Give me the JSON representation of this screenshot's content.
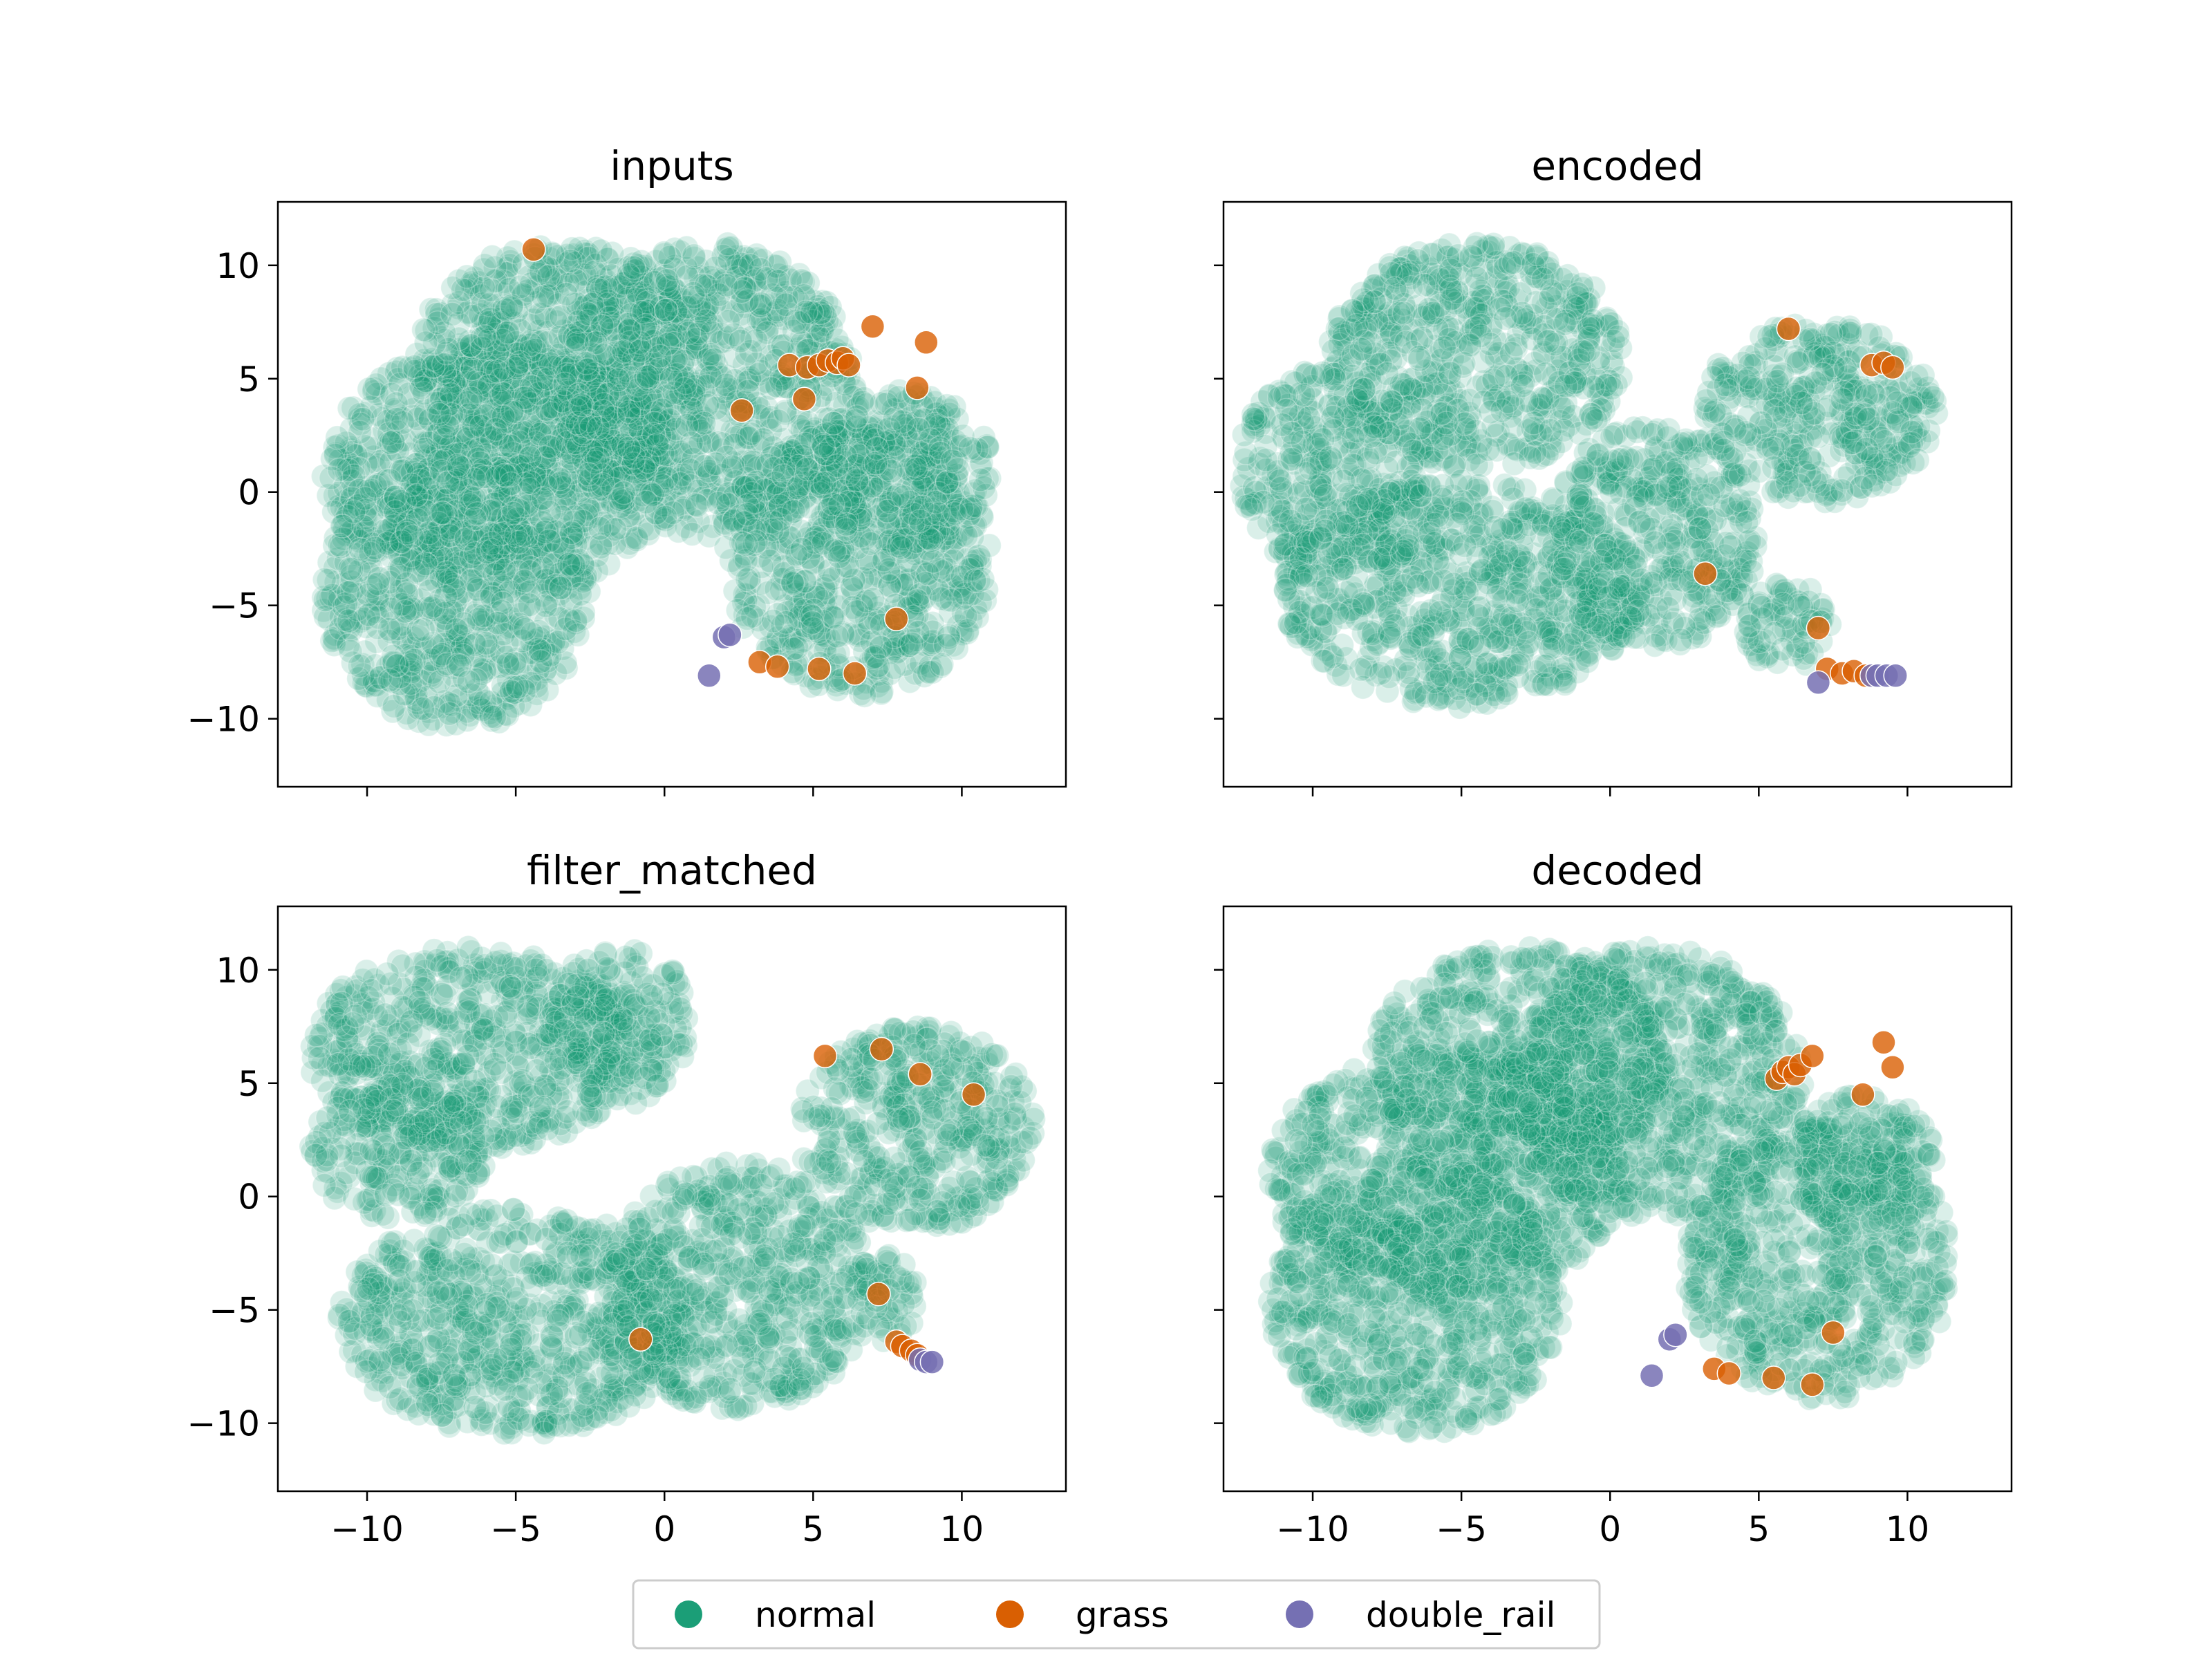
{
  "colors": {
    "normal": "#1b9e77",
    "grass": "#d95f02",
    "double_rail": "#7570b3",
    "axes": "#000000",
    "legend_border": "#cccccc"
  },
  "chart_data": {
    "type": "scatter",
    "layout": "2x2 grid, shared x and y axes",
    "legend": {
      "placement": "bottom-center",
      "entries": [
        "normal",
        "grass",
        "double_rail"
      ]
    },
    "xlim": [
      -13,
      13.5
    ],
    "ylim": [
      -13,
      12.8
    ],
    "xticks": [
      -10,
      -5,
      0,
      5,
      10
    ],
    "yticks": [
      10,
      5,
      0,
      -5,
      -10
    ],
    "xtick_labels": [
      "−10",
      "−5",
      "0",
      "5",
      "10"
    ],
    "ytick_labels": [
      "10",
      "5",
      "0",
      "−5",
      "−10"
    ],
    "grid": false,
    "panels": [
      {
        "title": "inputs",
        "normal_lobes": [
          {
            "cx": -5.5,
            "cy": 1.0,
            "rx": 6.0,
            "ry": 5.5
          },
          {
            "cx": -3.5,
            "cy": 5.5,
            "rx": 5.0,
            "ry": 5.5
          },
          {
            "cx": -7.0,
            "cy": -4.5,
            "rx": 4.5,
            "ry": 6.0
          },
          {
            "cx": 1.5,
            "cy": 4.5,
            "rx": 5.0,
            "ry": 6.5
          },
          {
            "cx": 6.5,
            "cy": -3.0,
            "rx": 4.5,
            "ry": 6.0
          },
          {
            "cx": 8.0,
            "cy": 1.0,
            "rx": 3.0,
            "ry": 3.5
          }
        ],
        "grass": [
          [
            -4.4,
            10.7
          ],
          [
            4.2,
            5.6
          ],
          [
            4.8,
            5.5
          ],
          [
            5.2,
            5.6
          ],
          [
            5.5,
            5.8
          ],
          [
            5.8,
            5.7
          ],
          [
            6.0,
            5.9
          ],
          [
            6.2,
            5.6
          ],
          [
            7.0,
            7.3
          ],
          [
            8.8,
            6.6
          ],
          [
            2.6,
            3.6
          ],
          [
            4.7,
            4.1
          ],
          [
            8.5,
            4.6
          ],
          [
            3.2,
            -7.5
          ],
          [
            3.8,
            -7.7
          ],
          [
            5.2,
            -7.8
          ],
          [
            6.4,
            -8.0
          ],
          [
            7.8,
            -5.6
          ]
        ],
        "double_rail": [
          [
            1.5,
            -8.1
          ],
          [
            2.0,
            -6.4
          ],
          [
            2.2,
            -6.3
          ]
        ]
      },
      {
        "title": "encoded",
        "normal_lobes": [
          {
            "cx": -4.5,
            "cy": 6.0,
            "rx": 5.0,
            "ry": 5.0
          },
          {
            "cx": -9.5,
            "cy": 1.0,
            "rx": 3.0,
            "ry": 4.5
          },
          {
            "cx": -5.0,
            "cy": -4.5,
            "rx": 6.0,
            "ry": 5.0
          },
          {
            "cx": 1.5,
            "cy": -2.0,
            "rx": 3.5,
            "ry": 5.0
          },
          {
            "cx": 7.0,
            "cy": 3.5,
            "rx": 4.0,
            "ry": 4.0
          },
          {
            "cx": 6.0,
            "cy": -6.0,
            "rx": 1.5,
            "ry": 2.0
          }
        ],
        "grass": [
          [
            6.0,
            7.2
          ],
          [
            8.8,
            5.6
          ],
          [
            9.2,
            5.7
          ],
          [
            9.5,
            5.5
          ],
          [
            7.0,
            -6.0
          ],
          [
            7.3,
            -7.8
          ],
          [
            7.8,
            -8.0
          ],
          [
            8.2,
            -7.9
          ],
          [
            8.6,
            -8.1
          ],
          [
            3.2,
            -3.6
          ]
        ],
        "double_rail": [
          [
            7.0,
            -8.4
          ],
          [
            8.8,
            -8.1
          ],
          [
            9.0,
            -8.1
          ],
          [
            9.3,
            -8.1
          ],
          [
            9.6,
            -8.1
          ]
        ]
      },
      {
        "title": "filter_matched",
        "normal_lobes": [
          {
            "cx": -6.5,
            "cy": 6.5,
            "rx": 5.5,
            "ry": 4.5
          },
          {
            "cx": -1.5,
            "cy": 7.5,
            "rx": 2.5,
            "ry": 3.5
          },
          {
            "cx": -9.0,
            "cy": 2.0,
            "rx": 3.0,
            "ry": 3.0
          },
          {
            "cx": -5.0,
            "cy": -5.5,
            "rx": 6.0,
            "ry": 5.0
          },
          {
            "cx": 2.5,
            "cy": -4.0,
            "rx": 4.5,
            "ry": 5.5
          },
          {
            "cx": 8.5,
            "cy": 3.0,
            "rx": 4.0,
            "ry": 4.5
          },
          {
            "cx": 7.5,
            "cy": -4.5,
            "rx": 1.0,
            "ry": 2.0
          }
        ],
        "grass": [
          [
            -0.8,
            -6.3
          ],
          [
            5.4,
            6.2
          ],
          [
            7.3,
            6.5
          ],
          [
            8.6,
            5.4
          ],
          [
            10.4,
            4.5
          ],
          [
            7.2,
            -4.3
          ],
          [
            7.8,
            -6.4
          ],
          [
            8.0,
            -6.6
          ],
          [
            8.3,
            -6.8
          ],
          [
            8.5,
            -7.0
          ]
        ],
        "double_rail": [
          [
            8.6,
            -7.2
          ],
          [
            8.8,
            -7.3
          ],
          [
            9.0,
            -7.3
          ]
        ]
      },
      {
        "title": "decoded",
        "normal_lobes": [
          {
            "cx": -5.5,
            "cy": 1.0,
            "rx": 6.0,
            "ry": 5.5
          },
          {
            "cx": -3.0,
            "cy": 6.0,
            "rx": 5.0,
            "ry": 5.0
          },
          {
            "cx": -6.5,
            "cy": -4.5,
            "rx": 5.0,
            "ry": 6.0
          },
          {
            "cx": 1.5,
            "cy": 5.0,
            "rx": 5.0,
            "ry": 6.0
          },
          {
            "cx": 7.0,
            "cy": -3.0,
            "rx": 4.5,
            "ry": 6.0
          },
          {
            "cx": 8.5,
            "cy": 1.5,
            "rx": 2.5,
            "ry": 3.0
          }
        ],
        "grass": [
          [
            5.6,
            5.2
          ],
          [
            5.8,
            5.5
          ],
          [
            6.0,
            5.7
          ],
          [
            6.2,
            5.4
          ],
          [
            6.4,
            5.8
          ],
          [
            6.8,
            6.2
          ],
          [
            9.2,
            6.8
          ],
          [
            9.5,
            5.7
          ],
          [
            8.5,
            4.5
          ],
          [
            3.5,
            -7.6
          ],
          [
            4.0,
            -7.8
          ],
          [
            5.5,
            -8.0
          ],
          [
            6.8,
            -8.3
          ],
          [
            7.5,
            -6.0
          ]
        ],
        "double_rail": [
          [
            1.4,
            -7.9
          ],
          [
            2.0,
            -6.3
          ],
          [
            2.2,
            -6.1
          ]
        ]
      }
    ]
  }
}
